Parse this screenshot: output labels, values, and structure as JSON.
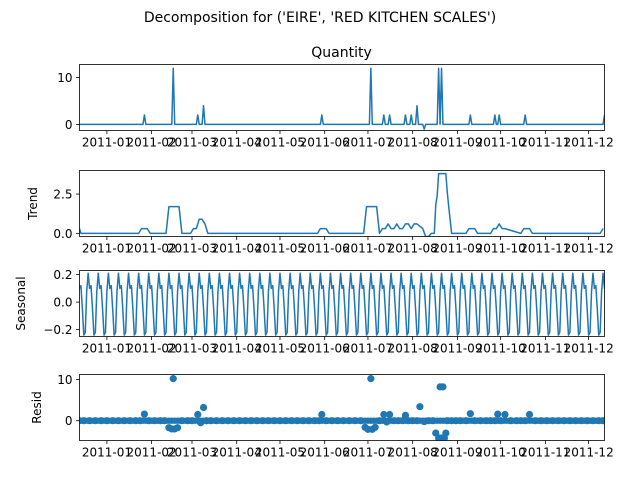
{
  "suptitle": "Decomposition for ('EIRE', 'RED KITCHEN SCALES')",
  "chart_data": [
    {
      "type": "line",
      "title": "Quantity",
      "ylabel": "",
      "xlim": [
        "2010-12-13",
        "2011-12-12"
      ],
      "ylim": [
        -1.3,
        12.8
      ],
      "yticks": [
        0,
        10
      ],
      "ytick_labels": [
        "0",
        "10"
      ],
      "xticks": [
        "2011-01-01",
        "2011-02-01",
        "2011-03-01",
        "2011-04-01",
        "2011-05-01",
        "2011-06-01",
        "2011-07-01",
        "2011-08-01",
        "2011-09-01",
        "2011-10-01",
        "2011-11-01",
        "2011-12-01"
      ],
      "xtick_labels": [
        "2011-01",
        "2011-02",
        "2011-03",
        "2011-04",
        "2011-05",
        "2011-06",
        "2011-07",
        "2011-08",
        "2011-09",
        "2011-10",
        "2011-11",
        "2011-12"
      ],
      "color": "#1f77b4",
      "x": [
        "2010-12-13",
        "2011-01-26",
        "2011-01-27",
        "2011-01-28",
        "2011-02-15",
        "2011-02-16",
        "2011-02-17",
        "2011-03-04",
        "2011-03-05",
        "2011-03-06",
        "2011-03-08",
        "2011-03-09",
        "2011-03-10",
        "2011-05-29",
        "2011-05-30",
        "2011-05-31",
        "2011-07-02",
        "2011-07-03",
        "2011-07-04",
        "2011-07-11",
        "2011-07-12",
        "2011-07-13",
        "2011-07-15",
        "2011-07-16",
        "2011-07-17",
        "2011-07-26",
        "2011-07-27",
        "2011-07-28",
        "2011-07-30",
        "2011-07-31",
        "2011-08-01",
        "2011-08-03",
        "2011-08-04",
        "2011-08-05",
        "2011-08-08",
        "2011-08-09",
        "2011-08-10",
        "2011-08-18",
        "2011-08-19",
        "2011-08-20",
        "2011-08-21",
        "2011-08-22",
        "2011-08-23",
        "2011-08-24",
        "2011-08-25",
        "2011-09-09",
        "2011-09-10",
        "2011-09-11",
        "2011-09-26",
        "2011-09-27",
        "2011-09-28",
        "2011-09-29",
        "2011-09-30",
        "2011-10-01",
        "2011-10-17",
        "2011-10-18",
        "2011-10-19",
        "2011-12-11",
        "2011-12-12"
      ],
      "values": [
        0,
        0,
        2,
        0,
        0,
        12,
        0,
        0,
        2,
        0,
        0,
        4,
        0,
        0,
        2,
        0,
        0,
        12,
        0,
        0,
        2,
        0,
        0,
        2,
        0,
        0,
        2,
        0,
        0,
        2,
        0,
        0,
        4,
        0,
        0,
        -1,
        0,
        0,
        12,
        0,
        12,
        0,
        0,
        0,
        0,
        0,
        2,
        0,
        0,
        2,
        0,
        0,
        2,
        0,
        0,
        2,
        0,
        0,
        2
      ]
    },
    {
      "type": "line",
      "title": "",
      "ylabel": "Trend",
      "xlim": [
        "2010-12-13",
        "2011-12-12"
      ],
      "ylim": [
        -0.2,
        4.0
      ],
      "yticks": [
        0,
        2.5
      ],
      "ytick_labels": [
        "0.0",
        "2.5"
      ],
      "xticks": [
        "2011-01-01",
        "2011-02-01",
        "2011-03-01",
        "2011-04-01",
        "2011-05-01",
        "2011-06-01",
        "2011-07-01",
        "2011-08-01",
        "2011-09-01",
        "2011-10-01",
        "2011-11-01",
        "2011-12-01"
      ],
      "xtick_labels": [
        "2011-01",
        "2011-02",
        "2011-03",
        "2011-04",
        "2011-05",
        "2011-06",
        "2011-07",
        "2011-08",
        "2011-09",
        "2011-10",
        "2011-11",
        "2011-12"
      ],
      "color": "#1f77b4",
      "x": [
        "2010-12-13",
        "2010-12-14",
        "2011-01-23",
        "2011-01-25",
        "2011-01-29",
        "2011-01-31",
        "2011-02-11",
        "2011-02-13",
        "2011-02-20",
        "2011-02-22",
        "2011-02-28",
        "2011-03-02",
        "2011-03-04",
        "2011-03-06",
        "2011-03-08",
        "2011-03-10",
        "2011-03-12",
        "2011-05-27",
        "2011-05-29",
        "2011-06-02",
        "2011-06-04",
        "2011-06-28",
        "2011-06-30",
        "2011-07-07",
        "2011-07-09",
        "2011-07-11",
        "2011-07-13",
        "2011-07-15",
        "2011-07-17",
        "2011-07-19",
        "2011-07-21",
        "2011-07-23",
        "2011-07-25",
        "2011-07-27",
        "2011-07-29",
        "2011-07-31",
        "2011-08-02",
        "2011-08-04",
        "2011-08-08",
        "2011-08-10",
        "2011-08-12",
        "2011-08-14",
        "2011-08-16",
        "2011-08-17",
        "2011-08-18",
        "2011-08-19",
        "2011-08-24",
        "2011-08-25",
        "2011-08-26",
        "2011-08-28",
        "2011-08-30",
        "2011-09-07",
        "2011-09-09",
        "2011-09-13",
        "2011-09-15",
        "2011-09-24",
        "2011-09-26",
        "2011-09-28",
        "2011-09-30",
        "2011-10-02",
        "2011-10-04",
        "2011-10-15",
        "2011-10-17",
        "2011-10-21",
        "2011-10-23",
        "2011-12-09",
        "2011-12-11"
      ],
      "values": [
        0.3,
        0,
        0,
        0.3,
        0.3,
        0,
        0,
        1.7,
        1.7,
        0,
        0,
        0.3,
        0.3,
        0.9,
        0.9,
        0.6,
        0,
        0,
        0.3,
        0.3,
        0,
        0,
        1.7,
        1.7,
        0,
        0.3,
        0.3,
        0.6,
        0.3,
        0.3,
        0.6,
        0.3,
        0.3,
        0.6,
        0.6,
        0.3,
        0.6,
        0.6,
        0.3,
        -0.2,
        -0.2,
        0,
        0,
        1.8,
        2.4,
        3.8,
        3.8,
        2.6,
        1.7,
        0,
        0,
        0,
        0.3,
        0.3,
        0,
        0,
        0.3,
        0.3,
        0.6,
        0.3,
        0.3,
        0,
        0.3,
        0.3,
        0,
        0,
        0.3
      ]
    },
    {
      "type": "line",
      "title": "",
      "ylabel": "Seasonal",
      "xlim": [
        "2010-12-13",
        "2011-12-12"
      ],
      "ylim": [
        -0.25,
        0.23
      ],
      "yticks": [
        -0.2,
        0.0,
        0.2
      ],
      "ytick_labels": [
        "−0.2",
        "0.0",
        "0.2"
      ],
      "xticks": [
        "2011-01-01",
        "2011-02-01",
        "2011-03-01",
        "2011-04-01",
        "2011-05-01",
        "2011-06-01",
        "2011-07-01",
        "2011-08-01",
        "2011-09-01",
        "2011-10-01",
        "2011-11-01",
        "2011-12-01"
      ],
      "xtick_labels": [
        "2011-01",
        "2011-02",
        "2011-03",
        "2011-04",
        "2011-05",
        "2011-06",
        "2011-07",
        "2011-08",
        "2011-09",
        "2011-10",
        "2011-11",
        "2011-12"
      ],
      "color": "#1f77b4",
      "period_days": 7,
      "weekly_pattern": [
        0.21,
        0.1,
        0.12,
        -0.05,
        -0.24,
        -0.22,
        0.08
      ]
    },
    {
      "type": "scatter",
      "title": "",
      "ylabel": "Resid",
      "xlim": [
        "2010-12-13",
        "2011-12-12"
      ],
      "ylim": [
        -4.8,
        11.2
      ],
      "yticks": [
        0,
        10
      ],
      "ytick_labels": [
        "0",
        "10"
      ],
      "xticks": [
        "2011-01-01",
        "2011-02-01",
        "2011-03-01",
        "2011-04-01",
        "2011-05-01",
        "2011-06-01",
        "2011-07-01",
        "2011-08-01",
        "2011-09-01",
        "2011-10-01",
        "2011-11-01",
        "2011-12-01"
      ],
      "xtick_labels": [
        "2011-01",
        "2011-02",
        "2011-03",
        "2011-04",
        "2011-05",
        "2011-06",
        "2011-07",
        "2011-08",
        "2011-09",
        "2011-10",
        "2011-11",
        "2011-12"
      ],
      "color": "#1f77b4",
      "baseline": 0,
      "x": [
        "2010-12-13",
        "2010-12-16",
        "2010-12-20",
        "2010-12-24",
        "2010-12-28",
        "2011-01-01",
        "2011-01-05",
        "2011-01-09",
        "2011-01-13",
        "2011-01-17",
        "2011-01-21",
        "2011-01-24",
        "2011-01-27",
        "2011-01-30",
        "2011-02-03",
        "2011-02-07",
        "2011-02-10",
        "2011-02-13",
        "2011-02-15",
        "2011-02-16",
        "2011-02-17",
        "2011-02-19",
        "2011-02-22",
        "2011-02-26",
        "2011-03-01",
        "2011-03-05",
        "2011-03-07",
        "2011-03-09",
        "2011-03-11",
        "2011-03-14",
        "2011-03-18",
        "2011-03-22",
        "2011-03-26",
        "2011-03-30",
        "2011-04-03",
        "2011-04-07",
        "2011-04-11",
        "2011-04-15",
        "2011-04-19",
        "2011-04-23",
        "2011-04-27",
        "2011-05-01",
        "2011-05-05",
        "2011-05-09",
        "2011-05-13",
        "2011-05-17",
        "2011-05-21",
        "2011-05-25",
        "2011-05-28",
        "2011-05-30",
        "2011-06-02",
        "2011-06-06",
        "2011-06-10",
        "2011-06-14",
        "2011-06-18",
        "2011-06-22",
        "2011-06-26",
        "2011-06-29",
        "2011-07-01",
        "2011-07-03",
        "2011-07-04",
        "2011-07-06",
        "2011-07-09",
        "2011-07-12",
        "2011-07-14",
        "2011-07-16",
        "2011-07-19",
        "2011-07-22",
        "2011-07-25",
        "2011-07-27",
        "2011-07-29",
        "2011-08-01",
        "2011-08-04",
        "2011-08-06",
        "2011-08-09",
        "2011-08-12",
        "2011-08-15",
        "2011-08-17",
        "2011-08-19",
        "2011-08-20",
        "2011-08-21",
        "2011-08-22",
        "2011-08-23",
        "2011-08-24",
        "2011-08-25",
        "2011-08-28",
        "2011-08-31",
        "2011-09-03",
        "2011-09-07",
        "2011-09-10",
        "2011-09-13",
        "2011-09-17",
        "2011-09-21",
        "2011-09-24",
        "2011-09-27",
        "2011-09-29",
        "2011-10-01",
        "2011-10-04",
        "2011-10-08",
        "2011-10-12",
        "2011-10-15",
        "2011-10-18",
        "2011-10-21",
        "2011-10-25",
        "2011-10-29",
        "2011-11-02",
        "2011-11-06",
        "2011-11-10",
        "2011-11-14",
        "2011-11-18",
        "2011-11-22",
        "2011-11-26",
        "2011-11-30",
        "2011-12-04",
        "2011-12-08",
        "2011-12-11"
      ],
      "values": [
        0,
        0,
        0,
        0,
        0,
        0,
        0,
        0,
        0,
        0,
        0,
        0,
        1.6,
        0,
        0,
        0,
        0,
        -1.7,
        -2.0,
        10.2,
        -2.0,
        -1.7,
        0,
        0,
        0,
        1.5,
        -0.5,
        3.2,
        0,
        0,
        0,
        0,
        0,
        0,
        0,
        0,
        0,
        0,
        0,
        0,
        0,
        0,
        0,
        0,
        0,
        0,
        0,
        0,
        0,
        1.5,
        0,
        0,
        0,
        0,
        0,
        0,
        0,
        -1.6,
        -2.1,
        10.2,
        -2.1,
        -1.6,
        0,
        1.5,
        -0.3,
        1.5,
        0,
        0,
        0,
        1.3,
        0,
        0,
        0,
        3.4,
        -0.2,
        0,
        0,
        -3.0,
        -4.2,
        8.2,
        -4.2,
        8.2,
        -4.2,
        -3.0,
        0,
        0,
        0,
        0,
        0,
        1.7,
        0,
        0,
        0,
        0,
        0,
        1.6,
        0,
        1.5,
        0,
        0,
        0,
        0,
        1.5,
        0,
        0,
        0,
        0,
        0,
        0,
        0,
        0,
        0,
        0,
        0,
        0,
        0
      ]
    }
  ]
}
